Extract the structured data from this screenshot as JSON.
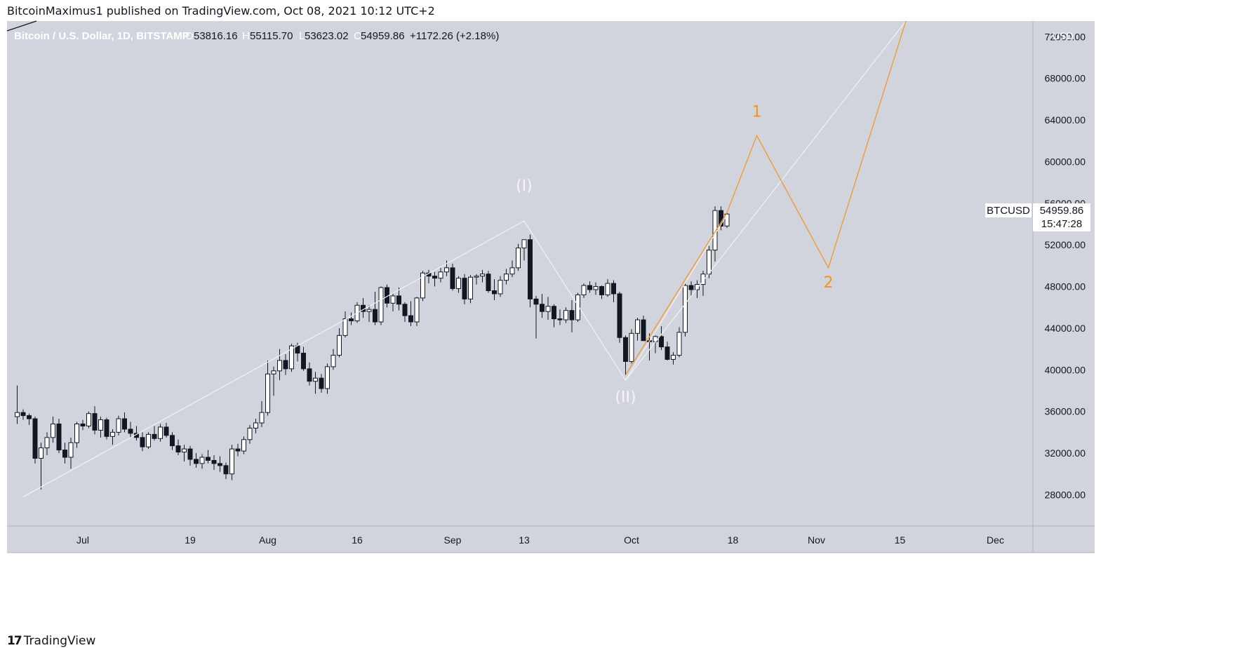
{
  "header": {
    "published": "BitcoinMaximus1 published on TradingView.com, Oct 08, 2021 10:12 UTC+2"
  },
  "footer": {
    "logo_mark": "17",
    "brand": "TradingView"
  },
  "colors": {
    "background": "#d1d4dc",
    "up_candle": "#ffffff",
    "down_candle": "#131722",
    "wick": "#131722",
    "white_wave": "#f2f2f2",
    "orange_wave": "#f7931a",
    "axis_text": "#131722"
  },
  "chart_data": {
    "type": "candlestick",
    "symbol_line": {
      "name": "Bitcoin / U.S. Dollar, 1D, BITSTAMP",
      "open_label": "O",
      "open": "53816.16",
      "high_label": "H",
      "high": "55115.70",
      "low_label": "L",
      "low": "53623.02",
      "close_label": "C",
      "close": "54959.86",
      "change": "+1172.26 (+2.18%)"
    },
    "y_axis": {
      "unit": "USD",
      "range": [
        25000,
        73500
      ],
      "ticks": [
        "72000.00",
        "68000.00",
        "64000.00",
        "60000.00",
        "56000.00",
        "52000.00",
        "48000.00",
        "44000.00",
        "40000.00",
        "36000.00",
        "32000.00",
        "28000.00"
      ],
      "tick_values": [
        72000,
        68000,
        64000,
        60000,
        56000,
        52000,
        48000,
        44000,
        40000,
        36000,
        32000,
        28000
      ]
    },
    "x_axis": {
      "ticks": [
        {
          "label": "Jul",
          "day": 0
        },
        {
          "label": "19",
          "day": 18
        },
        {
          "label": "Aug",
          "day": 31
        },
        {
          "label": "16",
          "day": 46
        },
        {
          "label": "Sep",
          "day": 62
        },
        {
          "label": "13",
          "day": 74
        },
        {
          "label": "Oct",
          "day": 92
        },
        {
          "label": "18",
          "day": 109
        },
        {
          "label": "Nov",
          "day": 123
        },
        {
          "label": "15",
          "day": 137
        },
        {
          "label": "Dec",
          "day": 153
        }
      ]
    },
    "price_label": {
      "symbol": "BTCUSD",
      "price": "54959.86",
      "countdown": "15:47:28"
    },
    "candles": [
      {
        "d": -11,
        "o": 35500,
        "h": 38500,
        "l": 34800,
        "c": 35900
      },
      {
        "d": -10,
        "o": 35900,
        "h": 36200,
        "l": 35200,
        "c": 35600
      },
      {
        "d": -9,
        "o": 35600,
        "h": 35800,
        "l": 34700,
        "c": 35300
      },
      {
        "d": -8,
        "o": 35300,
        "h": 35500,
        "l": 31000,
        "c": 31500
      },
      {
        "d": -7,
        "o": 31500,
        "h": 33000,
        "l": 28500,
        "c": 32500
      },
      {
        "d": -6,
        "o": 32500,
        "h": 34000,
        "l": 31800,
        "c": 33500
      },
      {
        "d": -5,
        "o": 33500,
        "h": 35500,
        "l": 33000,
        "c": 34800
      },
      {
        "d": -4,
        "o": 34800,
        "h": 35300,
        "l": 32000,
        "c": 32300
      },
      {
        "d": -3,
        "o": 32300,
        "h": 33000,
        "l": 31000,
        "c": 31600
      },
      {
        "d": -2,
        "o": 31600,
        "h": 33500,
        "l": 30500,
        "c": 33000
      },
      {
        "d": -1,
        "o": 33000,
        "h": 35000,
        "l": 32500,
        "c": 34800
      },
      {
        "d": 0,
        "o": 34800,
        "h": 35200,
        "l": 34200,
        "c": 34600
      },
      {
        "d": 1,
        "o": 34600,
        "h": 36000,
        "l": 34400,
        "c": 35800
      },
      {
        "d": 2,
        "o": 35800,
        "h": 36500,
        "l": 33800,
        "c": 34200
      },
      {
        "d": 3,
        "o": 34200,
        "h": 35500,
        "l": 33500,
        "c": 35200
      },
      {
        "d": 4,
        "o": 35200,
        "h": 35400,
        "l": 33300,
        "c": 33600
      },
      {
        "d": 5,
        "o": 33600,
        "h": 34300,
        "l": 32800,
        "c": 34000
      },
      {
        "d": 6,
        "o": 34000,
        "h": 35600,
        "l": 33700,
        "c": 35300
      },
      {
        "d": 7,
        "o": 35300,
        "h": 35900,
        "l": 34000,
        "c": 34300
      },
      {
        "d": 8,
        "o": 34300,
        "h": 35000,
        "l": 33500,
        "c": 33900
      },
      {
        "d": 9,
        "o": 33900,
        "h": 34600,
        "l": 33200,
        "c": 33500
      },
      {
        "d": 10,
        "o": 33500,
        "h": 34000,
        "l": 32200,
        "c": 32600
      },
      {
        "d": 11,
        "o": 32600,
        "h": 34000,
        "l": 32400,
        "c": 33800
      },
      {
        "d": 12,
        "o": 33800,
        "h": 34600,
        "l": 33200,
        "c": 33400
      },
      {
        "d": 13,
        "o": 33400,
        "h": 34800,
        "l": 33100,
        "c": 34500
      },
      {
        "d": 14,
        "o": 34500,
        "h": 34900,
        "l": 33500,
        "c": 33700
      },
      {
        "d": 15,
        "o": 33700,
        "h": 34000,
        "l": 32300,
        "c": 32700
      },
      {
        "d": 16,
        "o": 32700,
        "h": 33300,
        "l": 31800,
        "c": 32100
      },
      {
        "d": 17,
        "o": 32100,
        "h": 32800,
        "l": 31200,
        "c": 32400
      },
      {
        "d": 18,
        "o": 32400,
        "h": 32700,
        "l": 30800,
        "c": 31400
      },
      {
        "d": 19,
        "o": 31400,
        "h": 32000,
        "l": 30600,
        "c": 31000
      },
      {
        "d": 20,
        "o": 31000,
        "h": 31900,
        "l": 30500,
        "c": 31600
      },
      {
        "d": 21,
        "o": 31600,
        "h": 32300,
        "l": 31000,
        "c": 31300
      },
      {
        "d": 22,
        "o": 31300,
        "h": 31800,
        "l": 30400,
        "c": 31000
      },
      {
        "d": 23,
        "o": 31000,
        "h": 31700,
        "l": 30200,
        "c": 30800
      },
      {
        "d": 24,
        "o": 30800,
        "h": 31100,
        "l": 29500,
        "c": 30000
      },
      {
        "d": 25,
        "o": 30000,
        "h": 32800,
        "l": 29400,
        "c": 32400
      },
      {
        "d": 26,
        "o": 32400,
        "h": 32900,
        "l": 31700,
        "c": 32200
      },
      {
        "d": 27,
        "o": 32200,
        "h": 33600,
        "l": 31900,
        "c": 33300
      },
      {
        "d": 28,
        "o": 33300,
        "h": 34700,
        "l": 32900,
        "c": 34400
      },
      {
        "d": 29,
        "o": 34400,
        "h": 35300,
        "l": 33900,
        "c": 34900
      },
      {
        "d": 30,
        "o": 34900,
        "h": 37000,
        "l": 34500,
        "c": 35900
      },
      {
        "d": 31,
        "o": 35900,
        "h": 40900,
        "l": 35600,
        "c": 39600
      },
      {
        "d": 32,
        "o": 39600,
        "h": 40300,
        "l": 37500,
        "c": 39900
      },
      {
        "d": 33,
        "o": 39900,
        "h": 42000,
        "l": 39000,
        "c": 40900
      },
      {
        "d": 34,
        "o": 40900,
        "h": 41500,
        "l": 39500,
        "c": 40100
      },
      {
        "d": 35,
        "o": 40100,
        "h": 42500,
        "l": 39800,
        "c": 42300
      },
      {
        "d": 36,
        "o": 42300,
        "h": 42600,
        "l": 40800,
        "c": 41600
      },
      {
        "d": 37,
        "o": 41600,
        "h": 42200,
        "l": 39900,
        "c": 40100
      },
      {
        "d": 38,
        "o": 40100,
        "h": 40700,
        "l": 38500,
        "c": 38900
      },
      {
        "d": 39,
        "o": 38900,
        "h": 39800,
        "l": 37700,
        "c": 39200
      },
      {
        "d": 40,
        "o": 39200,
        "h": 39600,
        "l": 37800,
        "c": 38200
      },
      {
        "d": 41,
        "o": 38200,
        "h": 40600,
        "l": 37700,
        "c": 40300
      },
      {
        "d": 42,
        "o": 40300,
        "h": 42000,
        "l": 40000,
        "c": 41400
      },
      {
        "d": 43,
        "o": 41400,
        "h": 44000,
        "l": 41200,
        "c": 43300
      },
      {
        "d": 44,
        "o": 43300,
        "h": 45600,
        "l": 43100,
        "c": 44900
      },
      {
        "d": 45,
        "o": 44900,
        "h": 45500,
        "l": 44300,
        "c": 44700
      },
      {
        "d": 46,
        "o": 44700,
        "h": 46500,
        "l": 44500,
        "c": 46200
      },
      {
        "d": 47,
        "o": 46200,
        "h": 46900,
        "l": 45000,
        "c": 45600
      },
      {
        "d": 48,
        "o": 45600,
        "h": 46200,
        "l": 44600,
        "c": 45800
      },
      {
        "d": 49,
        "o": 45800,
        "h": 47500,
        "l": 44300,
        "c": 44600
      },
      {
        "d": 50,
        "o": 44600,
        "h": 48000,
        "l": 44300,
        "c": 47900
      },
      {
        "d": 51,
        "o": 47900,
        "h": 48200,
        "l": 46000,
        "c": 46400
      },
      {
        "d": 52,
        "o": 46400,
        "h": 47400,
        "l": 45600,
        "c": 47100
      },
      {
        "d": 53,
        "o": 47100,
        "h": 47900,
        "l": 45700,
        "c": 46300
      },
      {
        "d": 54,
        "o": 46300,
        "h": 46500,
        "l": 44600,
        "c": 45200
      },
      {
        "d": 55,
        "o": 45200,
        "h": 46600,
        "l": 44200,
        "c": 44600
      },
      {
        "d": 56,
        "o": 44600,
        "h": 47000,
        "l": 44200,
        "c": 46900
      },
      {
        "d": 57,
        "o": 46900,
        "h": 49500,
        "l": 46600,
        "c": 49300
      },
      {
        "d": 58,
        "o": 49300,
        "h": 49600,
        "l": 48300,
        "c": 49000
      },
      {
        "d": 59,
        "o": 49000,
        "h": 49400,
        "l": 48000,
        "c": 48800
      },
      {
        "d": 60,
        "o": 48800,
        "h": 49800,
        "l": 48400,
        "c": 49400
      },
      {
        "d": 61,
        "o": 49400,
        "h": 50500,
        "l": 49000,
        "c": 49800
      },
      {
        "d": 62,
        "o": 49800,
        "h": 50200,
        "l": 47600,
        "c": 47800
      },
      {
        "d": 63,
        "o": 47800,
        "h": 49000,
        "l": 47400,
        "c": 48800
      },
      {
        "d": 64,
        "o": 48800,
        "h": 49200,
        "l": 46300,
        "c": 46800
      },
      {
        "d": 65,
        "o": 46800,
        "h": 49100,
        "l": 46400,
        "c": 48900
      },
      {
        "d": 66,
        "o": 48900,
        "h": 49200,
        "l": 48200,
        "c": 49000
      },
      {
        "d": 67,
        "o": 49000,
        "h": 49600,
        "l": 48400,
        "c": 49200
      },
      {
        "d": 68,
        "o": 49200,
        "h": 49500,
        "l": 47400,
        "c": 47600
      },
      {
        "d": 69,
        "o": 47600,
        "h": 48700,
        "l": 46700,
        "c": 47300
      },
      {
        "d": 70,
        "o": 47300,
        "h": 49000,
        "l": 47000,
        "c": 48600
      },
      {
        "d": 71,
        "o": 48600,
        "h": 49700,
        "l": 48200,
        "c": 49200
      },
      {
        "d": 72,
        "o": 49200,
        "h": 50500,
        "l": 48900,
        "c": 49800
      },
      {
        "d": 73,
        "o": 49800,
        "h": 52100,
        "l": 49500,
        "c": 51700
      },
      {
        "d": 74,
        "o": 51700,
        "h": 52400,
        "l": 50500,
        "c": 52500
      },
      {
        "d": 75,
        "o": 52500,
        "h": 53000,
        "l": 46000,
        "c": 46800
      },
      {
        "d": 76,
        "o": 46800,
        "h": 47100,
        "l": 43000,
        "c": 46300
      },
      {
        "d": 77,
        "o": 46300,
        "h": 47300,
        "l": 45000,
        "c": 45600
      },
      {
        "d": 78,
        "o": 45600,
        "h": 47000,
        "l": 44800,
        "c": 46100
      },
      {
        "d": 79,
        "o": 46100,
        "h": 46300,
        "l": 44100,
        "c": 44900
      },
      {
        "d": 80,
        "o": 44900,
        "h": 45800,
        "l": 44300,
        "c": 44800
      },
      {
        "d": 81,
        "o": 44800,
        "h": 46000,
        "l": 44500,
        "c": 45700
      },
      {
        "d": 82,
        "o": 45700,
        "h": 46700,
        "l": 43600,
        "c": 44800
      },
      {
        "d": 83,
        "o": 44800,
        "h": 47400,
        "l": 44600,
        "c": 47200
      },
      {
        "d": 84,
        "o": 47200,
        "h": 48300,
        "l": 46900,
        "c": 48100
      },
      {
        "d": 85,
        "o": 48100,
        "h": 48500,
        "l": 47400,
        "c": 47700
      },
      {
        "d": 86,
        "o": 47700,
        "h": 48400,
        "l": 47200,
        "c": 48000
      },
      {
        "d": 87,
        "o": 48000,
        "h": 48100,
        "l": 46800,
        "c": 47200
      },
      {
        "d": 88,
        "o": 47200,
        "h": 48700,
        "l": 47000,
        "c": 48300
      },
      {
        "d": 89,
        "o": 48300,
        "h": 48600,
        "l": 46500,
        "c": 47300
      },
      {
        "d": 90,
        "o": 47300,
        "h": 47500,
        "l": 42600,
        "c": 43100
      },
      {
        "d": 91,
        "o": 43100,
        "h": 43300,
        "l": 39500,
        "c": 40800
      },
      {
        "d": 92,
        "o": 40800,
        "h": 43900,
        "l": 40600,
        "c": 43500
      },
      {
        "d": 93,
        "o": 43500,
        "h": 45000,
        "l": 42800,
        "c": 44800
      },
      {
        "d": 94,
        "o": 44800,
        "h": 45200,
        "l": 43000,
        "c": 42800
      },
      {
        "d": 95,
        "o": 42800,
        "h": 43500,
        "l": 40900,
        "c": 42700
      },
      {
        "d": 96,
        "o": 42700,
        "h": 43300,
        "l": 41600,
        "c": 43200
      },
      {
        "d": 97,
        "o": 43200,
        "h": 44200,
        "l": 41900,
        "c": 42200
      },
      {
        "d": 98,
        "o": 42200,
        "h": 42700,
        "l": 40900,
        "c": 41000
      },
      {
        "d": 99,
        "o": 41000,
        "h": 41700,
        "l": 40500,
        "c": 41400
      },
      {
        "d": 100,
        "o": 41400,
        "h": 44100,
        "l": 41200,
        "c": 43600
      },
      {
        "d": 101,
        "o": 43600,
        "h": 48300,
        "l": 43200,
        "c": 48100
      },
      {
        "d": 102,
        "o": 48100,
        "h": 48500,
        "l": 47100,
        "c": 47700
      },
      {
        "d": 103,
        "o": 47700,
        "h": 48600,
        "l": 46900,
        "c": 48200
      },
      {
        "d": 104,
        "o": 48200,
        "h": 49500,
        "l": 47100,
        "c": 49200
      },
      {
        "d": 105,
        "o": 49200,
        "h": 51900,
        "l": 48800,
        "c": 51500
      },
      {
        "d": 106,
        "o": 51500,
        "h": 55700,
        "l": 50400,
        "c": 55300
      },
      {
        "d": 107,
        "o": 55300,
        "h": 55700,
        "l": 53400,
        "c": 53800
      },
      {
        "d": 108,
        "o": 53816,
        "h": 55116,
        "l": 53623,
        "c": 54960
      }
    ],
    "annotations": [
      {
        "text": "(I)",
        "d": 74,
        "price": 57200,
        "color": "white"
      },
      {
        "text": "(II)",
        "d": 91,
        "price": 36900,
        "color": "white"
      },
      {
        "text": "1",
        "d": 113,
        "price": 64300,
        "color": "orange"
      },
      {
        "text": "2",
        "d": 125,
        "price": 47900,
        "color": "orange"
      }
    ],
    "white_wave": [
      [
        -10,
        27800
      ],
      [
        74,
        54300
      ],
      [
        91,
        39000
      ],
      [
        108,
        54900
      ]
    ],
    "white_channel": [
      [
        91,
        39000
      ],
      [
        138,
        73500
      ]
    ],
    "orange_wave": [
      [
        91,
        39500
      ],
      [
        108,
        55100
      ],
      [
        113,
        62500
      ],
      [
        125,
        49800
      ],
      [
        138,
        73500
      ]
    ]
  }
}
